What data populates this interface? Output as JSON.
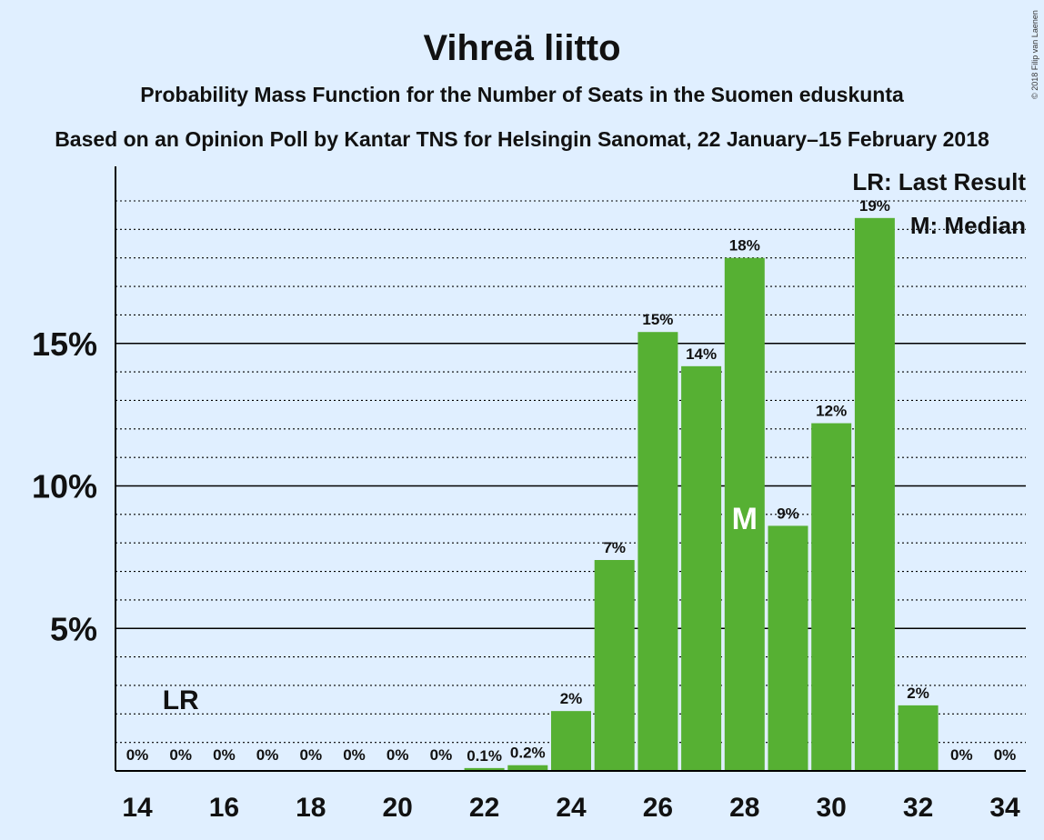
{
  "chart_data": {
    "type": "bar",
    "title": "Vihreä liitto",
    "subtitle": "Probability Mass Function for the Number of Seats in the Suomen eduskunta",
    "subtitle2": "Based on an Opinion Poll by Kantar TNS for Helsingin Sanomat, 22 January–15 February 2018",
    "credit": "© 2018 Filip van Laenen",
    "x": [
      14,
      15,
      16,
      17,
      18,
      19,
      20,
      21,
      22,
      23,
      24,
      25,
      26,
      27,
      28,
      29,
      30,
      31,
      32,
      33,
      34
    ],
    "values": [
      0,
      0,
      0,
      0,
      0,
      0,
      0,
      0,
      0.1,
      0.2,
      2.1,
      7.4,
      15.4,
      14.2,
      18.0,
      8.6,
      12.2,
      19.4,
      2.3,
      0,
      0
    ],
    "data_labels": [
      "0%",
      "0%",
      "0%",
      "0%",
      "0%",
      "0%",
      "0%",
      "0%",
      "0.1%",
      "0.2%",
      "2%",
      "7%",
      "15%",
      "14%",
      "18%",
      "9%",
      "12%",
      "19%",
      "2%",
      "0%",
      "0%"
    ],
    "x_tick_labels": [
      "14",
      "16",
      "18",
      "20",
      "22",
      "24",
      "26",
      "28",
      "30",
      "32",
      "34"
    ],
    "y_ticks": [
      5,
      10,
      15
    ],
    "y_tick_labels": [
      "5%",
      "10%",
      "15%"
    ],
    "ylim": [
      0,
      21
    ],
    "last_result_seat": 15,
    "last_result_marker": "LR",
    "median_seat": 28,
    "median_marker": "M",
    "legend": [
      "LR: Last Result",
      "M: Median"
    ],
    "legend_position": "top-right",
    "bar_color": "#56b033",
    "grid": "dotted minor lines every 1%, solid major lines every 5%"
  }
}
